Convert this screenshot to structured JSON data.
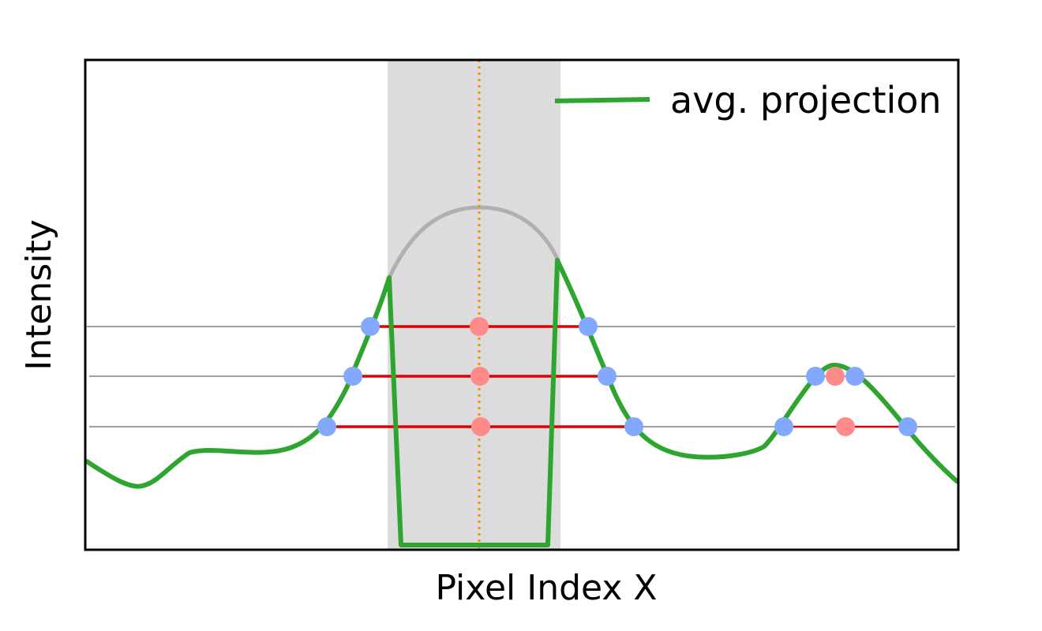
{
  "labels": {
    "x_axis": "Pixel Index X",
    "y_axis": "Intensity",
    "legend": "avg. projection"
  },
  "colors": {
    "curve": "#2ea52e",
    "masked_curve": "#b0b0b0",
    "mask_band": "#dcdcdc",
    "center_line": "#ff8c00",
    "threshold_line": "#808080",
    "chord": "#e00000",
    "crossing_point": "#82a9ff",
    "midpoint": "#ff8a8a",
    "frame": "#000000"
  }
}
